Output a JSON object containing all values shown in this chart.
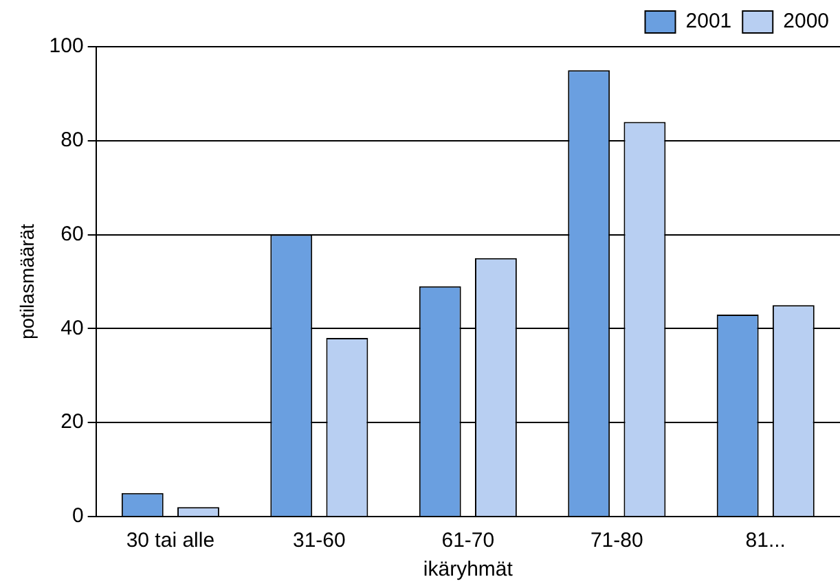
{
  "chart_data": {
    "type": "bar",
    "xlabel": "ikäryhmät",
    "ylabel": "potilasmäärät",
    "categories": [
      "30 tai alle",
      "31-60",
      "61-70",
      "71-80",
      "81..."
    ],
    "series": [
      {
        "name": "2001",
        "color": "#6a9fe0",
        "values": [
          5,
          60,
          49,
          95,
          43
        ]
      },
      {
        "name": "2000",
        "color": "#b8cff2",
        "values": [
          2,
          38,
          55,
          84,
          45
        ]
      }
    ],
    "ylim": [
      0,
      100
    ],
    "yticks": [
      0,
      20,
      40,
      60,
      80,
      100
    ],
    "grid": "y",
    "legend": "top right"
  }
}
